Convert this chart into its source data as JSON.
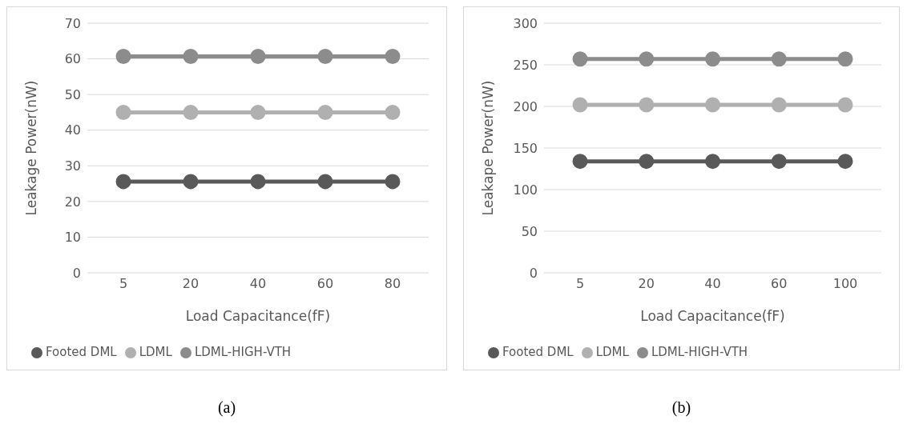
{
  "chart_data": [
    {
      "type": "line",
      "xlabel": "Load Capacitance(fF)",
      "ylabel": "Leakage Power(nW)",
      "categories": [
        "5",
        "20",
        "40",
        "60",
        "80"
      ],
      "series": [
        {
          "name": "Footed DML",
          "color": "#595959",
          "values": [
            25.6,
            25.6,
            25.6,
            25.6,
            25.6
          ]
        },
        {
          "name": "LDML",
          "color": "#b0b0b0",
          "values": [
            45,
            45,
            45,
            45,
            45
          ]
        },
        {
          "name": "LDML-HIGH-VTH",
          "color": "#8c8c8c",
          "values": [
            60.7,
            60.7,
            60.7,
            60.7,
            60.7
          ]
        }
      ],
      "ylim": [
        0,
        70
      ],
      "yticks": [
        0,
        10,
        20,
        30,
        40,
        50,
        60,
        70
      ],
      "grid": "y",
      "legend": "bottom",
      "marker": "circle",
      "line_style": "solid",
      "annotations": [
        "(a)"
      ]
    },
    {
      "type": "line",
      "xlabel": "Load Capacitance(fF)",
      "ylabel": "Leakape Power(nW)",
      "categories": [
        "5",
        "20",
        "40",
        "60",
        "100"
      ],
      "series": [
        {
          "name": "Footed DML",
          "color": "#595959",
          "values": [
            134,
            134,
            134,
            134,
            134
          ]
        },
        {
          "name": "LDML",
          "color": "#b0b0b0",
          "values": [
            202,
            202,
            202,
            202,
            202
          ]
        },
        {
          "name": "LDML-HIGH-VTH",
          "color": "#8c8c8c",
          "values": [
            257,
            257,
            257,
            257,
            257
          ]
        }
      ],
      "ylim": [
        0,
        300
      ],
      "yticks": [
        0,
        50,
        100,
        150,
        200,
        250,
        300
      ],
      "grid": "y",
      "legend": "bottom",
      "marker": "circle",
      "line_style": "solid",
      "annotations": [
        "(b)"
      ]
    }
  ]
}
